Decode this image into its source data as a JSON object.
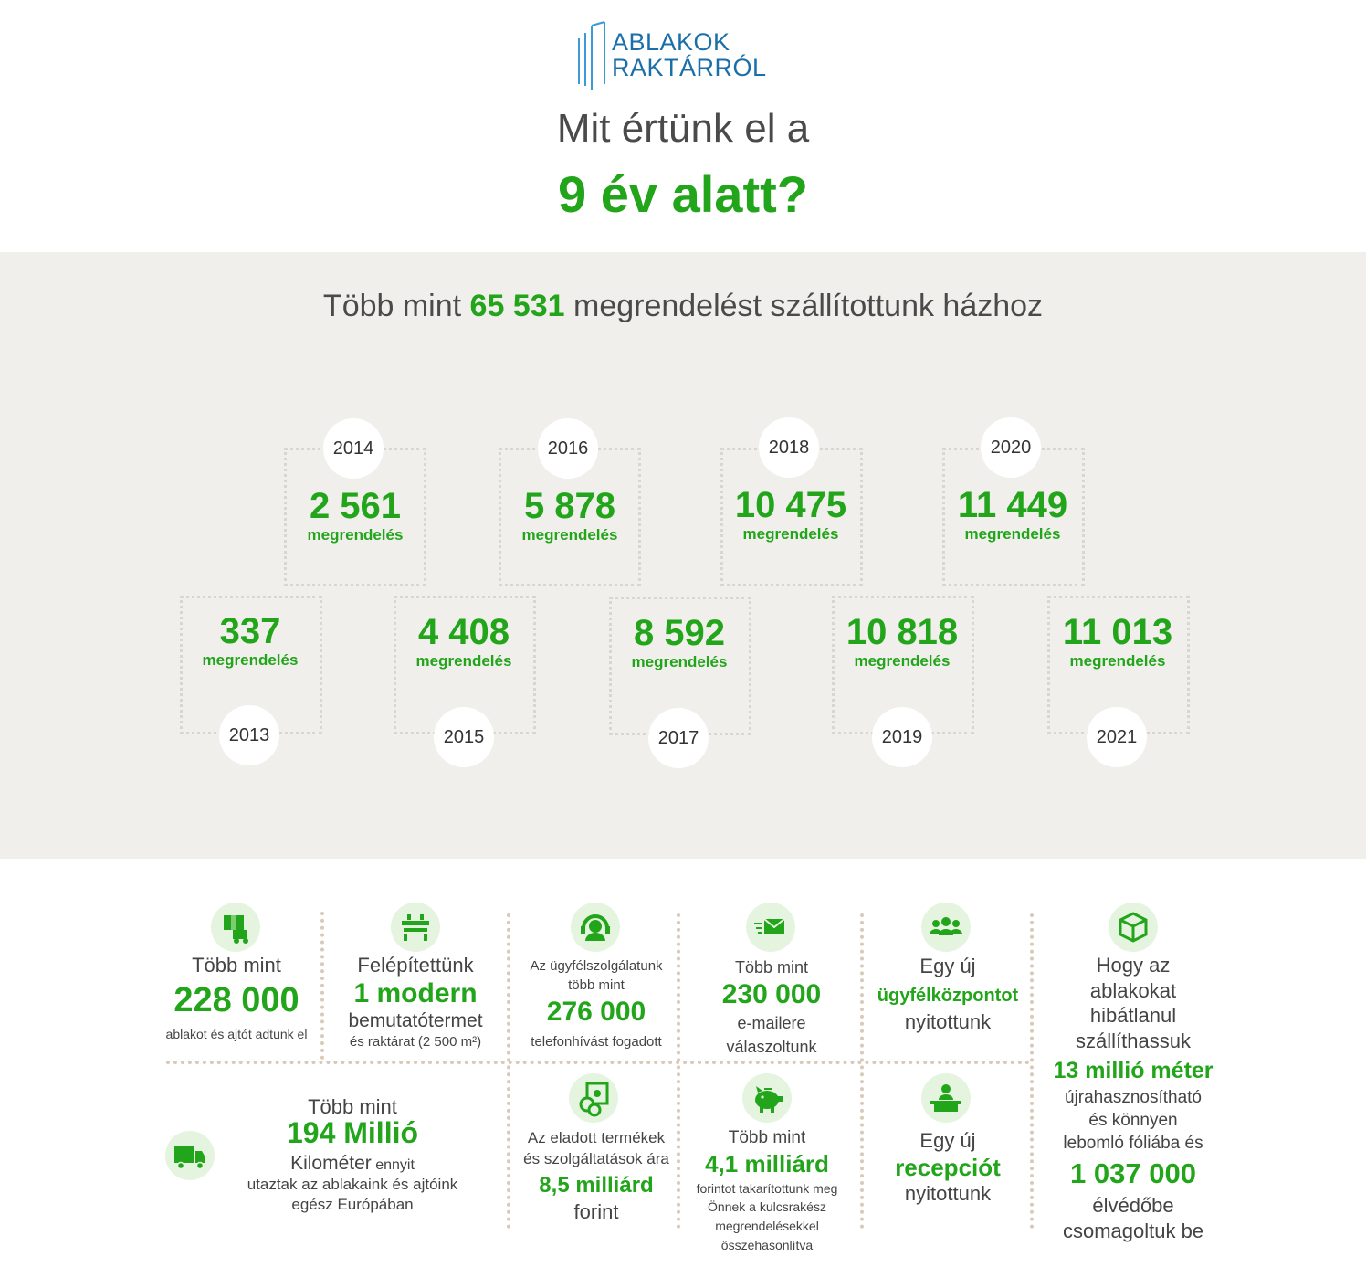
{
  "brand": {
    "line1": "ABLAKOK",
    "line2": "RAKTÁRRÓL"
  },
  "title": {
    "line1": "Mit értünk el a",
    "line2": "9 év alatt?"
  },
  "orders": {
    "prefix": "Több mint ",
    "number": "65 531",
    "suffix": " megrendelést szállítottunk házhoz",
    "unit": "megrendelés",
    "years": [
      {
        "year": "2013",
        "value": "337"
      },
      {
        "year": "2014",
        "value": "2 561"
      },
      {
        "year": "2015",
        "value": "4 408"
      },
      {
        "year": "2016",
        "value": "5 878"
      },
      {
        "year": "2017",
        "value": "8 592"
      },
      {
        "year": "2018",
        "value": "10 475"
      },
      {
        "year": "2019",
        "value": "10 818"
      },
      {
        "year": "2020",
        "value": "11 449"
      },
      {
        "year": "2021",
        "value": "11 013"
      }
    ]
  },
  "stats": {
    "windows": {
      "icon": "package-truck-icon",
      "pre": "Több mint",
      "value": "228 000",
      "post": "ablakot és ajtót adtunk el"
    },
    "showroom": {
      "icon": "building-icon",
      "pre": "Felépítettünk",
      "value": "1 modern",
      "post1": "bemutatótermet",
      "post2": "és raktárat (2 500 m²)"
    },
    "calls": {
      "icon": "headset-icon",
      "pre1": "Az ügyfélszolgálatunk",
      "pre2": "több mint",
      "value": "276 000",
      "post": "telefonhívást fogadott"
    },
    "emails": {
      "icon": "email-icon",
      "pre": "Több mint",
      "value": "230 000",
      "post1": "e-mailere",
      "post2": "válaszoltunk"
    },
    "center": {
      "icon": "team-icon",
      "pre": "Egy új",
      "value": "ügyfélközpontot",
      "post": "nyitottunk"
    },
    "packaging": {
      "icon": "box-icon",
      "pre1": "Hogy az",
      "pre2": "ablakokat",
      "pre3": "hibátlanul",
      "pre4": "szállíthassuk",
      "value1": "13 millió méter",
      "mid1": "újrahasznosítható",
      "mid2": "és könnyen",
      "mid3": "lebomló fóliába és",
      "value2": "1 037 000",
      "post1": "élvédőbe",
      "post2": "csomagoltuk be"
    },
    "km": {
      "icon": "truck-icon",
      "pre": "Több mint",
      "value": "194 Millió",
      "unit": "Kilométer",
      "unit_tail": " ennyit",
      "post1": "utaztak az ablakaink és ajtóink",
      "post2": "egész Európában"
    },
    "sales": {
      "icon": "coins-icon",
      "pre1": "Az eladott termékek",
      "pre2": "és szolgáltatások ára",
      "value": "8,5 milliárd",
      "post": "forint"
    },
    "savings": {
      "icon": "piggy-bank-icon",
      "pre": "Több mint",
      "value": "4,1 milliárd",
      "post1": "forintot takarítottunk meg",
      "post2": "Önnek a kulcsrakész",
      "post3": "megrendelésekkel",
      "post4": "összehasonlítva"
    },
    "reception": {
      "icon": "reception-desk-icon",
      "pre": "Egy új",
      "value": "recepciót",
      "post": "nyitottunk"
    }
  },
  "colors": {
    "green": "#22a51a",
    "brand_blue": "#1b6fa8",
    "band": "#f0efeb"
  }
}
